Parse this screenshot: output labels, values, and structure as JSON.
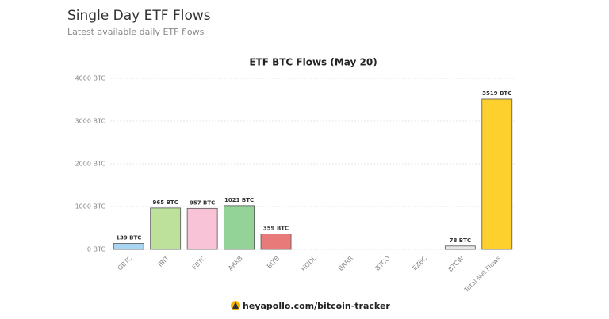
{
  "header": {
    "title": "Single Day ETF Flows",
    "subtitle": "Latest available daily ETF flows"
  },
  "chart_data": {
    "type": "bar",
    "title": "ETF BTC Flows (May 20)",
    "categories": [
      "GBTC",
      "IBIT",
      "FBTC",
      "ARKB",
      "BITB",
      "HODL",
      "BRRR",
      "BTCO",
      "EZBC",
      "BTCW",
      "Total Net Flows"
    ],
    "values": [
      139,
      965,
      957,
      1021,
      359,
      0,
      0,
      0,
      0,
      78,
      3519
    ],
    "value_labels": [
      "139 BTC",
      "965 BTC",
      "957 BTC",
      "1021 BTC",
      "359 BTC",
      null,
      null,
      null,
      null,
      "78 BTC",
      "3519 BTC"
    ],
    "colors": [
      "#a8d5f2",
      "#bde19a",
      "#f8c3d6",
      "#93d397",
      "#e87a7a",
      "#e6e6e6",
      "#e6e6e6",
      "#e6e6e6",
      "#e6e6e6",
      "#e6e6e6",
      "#fdd02e"
    ],
    "ylim": [
      0,
      4000
    ],
    "yticks": [
      {
        "value": 0,
        "label": "0 BTC"
      },
      {
        "value": 1000,
        "label": "1000 BTC"
      },
      {
        "value": 2000,
        "label": "2000 BTC"
      },
      {
        "value": 3000,
        "label": "3000 BTC"
      },
      {
        "value": 4000,
        "label": "4000 BTC"
      }
    ],
    "grid": true
  },
  "footer": {
    "link": "heyapollo.com/bitcoin-tracker"
  }
}
